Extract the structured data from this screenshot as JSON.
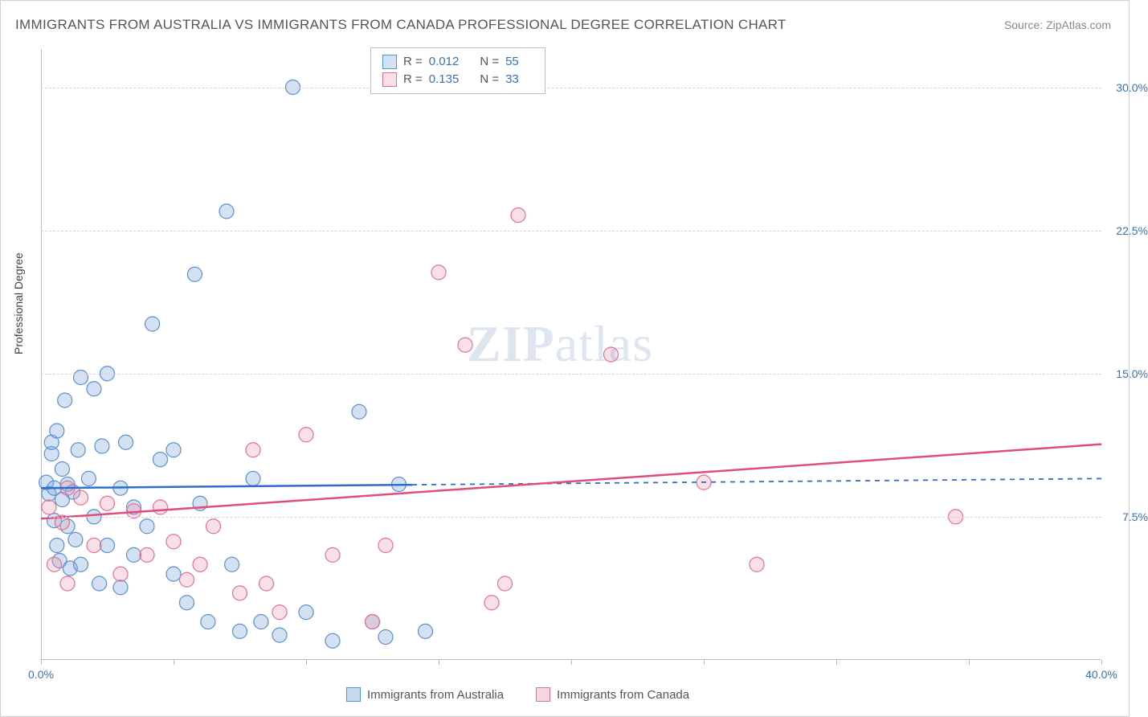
{
  "title": "IMMIGRANTS FROM AUSTRALIA VS IMMIGRANTS FROM CANADA PROFESSIONAL DEGREE CORRELATION CHART",
  "source": "Source: ZipAtlas.com",
  "ylabel": "Professional Degree",
  "watermark_zip": "ZIP",
  "watermark_atlas": "atlas",
  "chart": {
    "type": "scatter",
    "xlim": [
      0,
      40
    ],
    "ylim": [
      0,
      32
    ],
    "xticks": [
      0,
      40
    ],
    "xtick_labels": [
      "0.0%",
      "40.0%"
    ],
    "xtick_marks": [
      0,
      5,
      10,
      15,
      20,
      25,
      30,
      35,
      40
    ],
    "yticks": [
      7.5,
      15.0,
      22.5,
      30.0
    ],
    "ytick_labels": [
      "7.5%",
      "15.0%",
      "22.5%",
      "30.0%"
    ],
    "grid_color": "#d5d5d5",
    "background_color": "#ffffff",
    "axis_color": "#bbbbbb"
  },
  "series": [
    {
      "name": "Immigrants from Australia",
      "marker_fill": "rgba(130,170,220,0.35)",
      "marker_stroke": "#5a8fd0",
      "line_color": "#2f6fc9",
      "line_dash_ext": true,
      "R": "0.012",
      "N": "55",
      "regression": {
        "x0": 0,
        "y0": 9.0,
        "x1": 40,
        "y1": 9.5,
        "solid_until_x": 14
      },
      "points": [
        [
          0.2,
          9.3
        ],
        [
          0.3,
          8.7
        ],
        [
          0.4,
          10.8
        ],
        [
          0.4,
          11.4
        ],
        [
          0.5,
          9.0
        ],
        [
          0.5,
          7.3
        ],
        [
          0.6,
          6.0
        ],
        [
          0.6,
          12.0
        ],
        [
          0.7,
          5.2
        ],
        [
          0.8,
          10.0
        ],
        [
          0.8,
          8.4
        ],
        [
          0.9,
          13.6
        ],
        [
          1.0,
          9.2
        ],
        [
          1.0,
          7.0
        ],
        [
          1.1,
          4.8
        ],
        [
          1.2,
          8.8
        ],
        [
          1.3,
          6.3
        ],
        [
          1.4,
          11.0
        ],
        [
          1.5,
          5.0
        ],
        [
          1.5,
          14.8
        ],
        [
          1.8,
          9.5
        ],
        [
          2.0,
          14.2
        ],
        [
          2.0,
          7.5
        ],
        [
          2.2,
          4.0
        ],
        [
          2.3,
          11.2
        ],
        [
          2.5,
          6.0
        ],
        [
          2.5,
          15.0
        ],
        [
          3.0,
          9.0
        ],
        [
          3.0,
          3.8
        ],
        [
          3.2,
          11.4
        ],
        [
          3.5,
          5.5
        ],
        [
          3.5,
          8.0
        ],
        [
          4.0,
          7.0
        ],
        [
          4.2,
          17.6
        ],
        [
          4.5,
          10.5
        ],
        [
          5.0,
          4.5
        ],
        [
          5.0,
          11.0
        ],
        [
          5.5,
          3.0
        ],
        [
          5.8,
          20.2
        ],
        [
          6.0,
          8.2
        ],
        [
          6.3,
          2.0
        ],
        [
          7.0,
          23.5
        ],
        [
          7.2,
          5.0
        ],
        [
          7.5,
          1.5
        ],
        [
          8.0,
          9.5
        ],
        [
          8.3,
          2.0
        ],
        [
          9.0,
          1.3
        ],
        [
          9.5,
          30.0
        ],
        [
          10.0,
          2.5
        ],
        [
          11.0,
          1.0
        ],
        [
          12.0,
          13.0
        ],
        [
          12.5,
          2.0
        ],
        [
          13.0,
          1.2
        ],
        [
          13.5,
          9.2
        ],
        [
          14.5,
          1.5
        ]
      ]
    },
    {
      "name": "Immigrants from Canada",
      "marker_fill": "rgba(235,150,175,0.30)",
      "marker_stroke": "#e56f93",
      "line_color": "#e04d7a",
      "line_dash_ext": false,
      "R": "0.135",
      "N": "33",
      "regression": {
        "x0": 0,
        "y0": 7.4,
        "x1": 40,
        "y1": 11.3,
        "solid_until_x": 40
      },
      "points": [
        [
          0.3,
          8.0
        ],
        [
          0.5,
          5.0
        ],
        [
          0.8,
          7.2
        ],
        [
          1.0,
          9.0
        ],
        [
          1.0,
          4.0
        ],
        [
          1.5,
          8.5
        ],
        [
          2.0,
          6.0
        ],
        [
          2.5,
          8.2
        ],
        [
          3.0,
          4.5
        ],
        [
          3.5,
          7.8
        ],
        [
          4.0,
          5.5
        ],
        [
          4.5,
          8.0
        ],
        [
          5.0,
          6.2
        ],
        [
          5.5,
          4.2
        ],
        [
          6.0,
          5.0
        ],
        [
          6.5,
          7.0
        ],
        [
          7.5,
          3.5
        ],
        [
          8.0,
          11.0
        ],
        [
          8.5,
          4.0
        ],
        [
          9.0,
          2.5
        ],
        [
          10.0,
          11.8
        ],
        [
          11.0,
          5.5
        ],
        [
          12.5,
          2.0
        ],
        [
          13.0,
          6.0
        ],
        [
          15.0,
          20.3
        ],
        [
          16.0,
          16.5
        ],
        [
          17.0,
          3.0
        ],
        [
          17.5,
          4.0
        ],
        [
          18.0,
          23.3
        ],
        [
          25.0,
          9.3
        ],
        [
          27.0,
          5.0
        ],
        [
          34.5,
          7.5
        ],
        [
          21.5,
          16.0
        ]
      ]
    }
  ],
  "legend_top": {
    "r_label": "R =",
    "n_label": "N ="
  },
  "legend_bottom": [
    {
      "label": "Immigrants from Australia",
      "fill": "rgba(130,170,220,0.45)",
      "stroke": "#5a8fd0"
    },
    {
      "label": "Immigrants from Canada",
      "fill": "rgba(235,150,175,0.40)",
      "stroke": "#e56f93"
    }
  ]
}
